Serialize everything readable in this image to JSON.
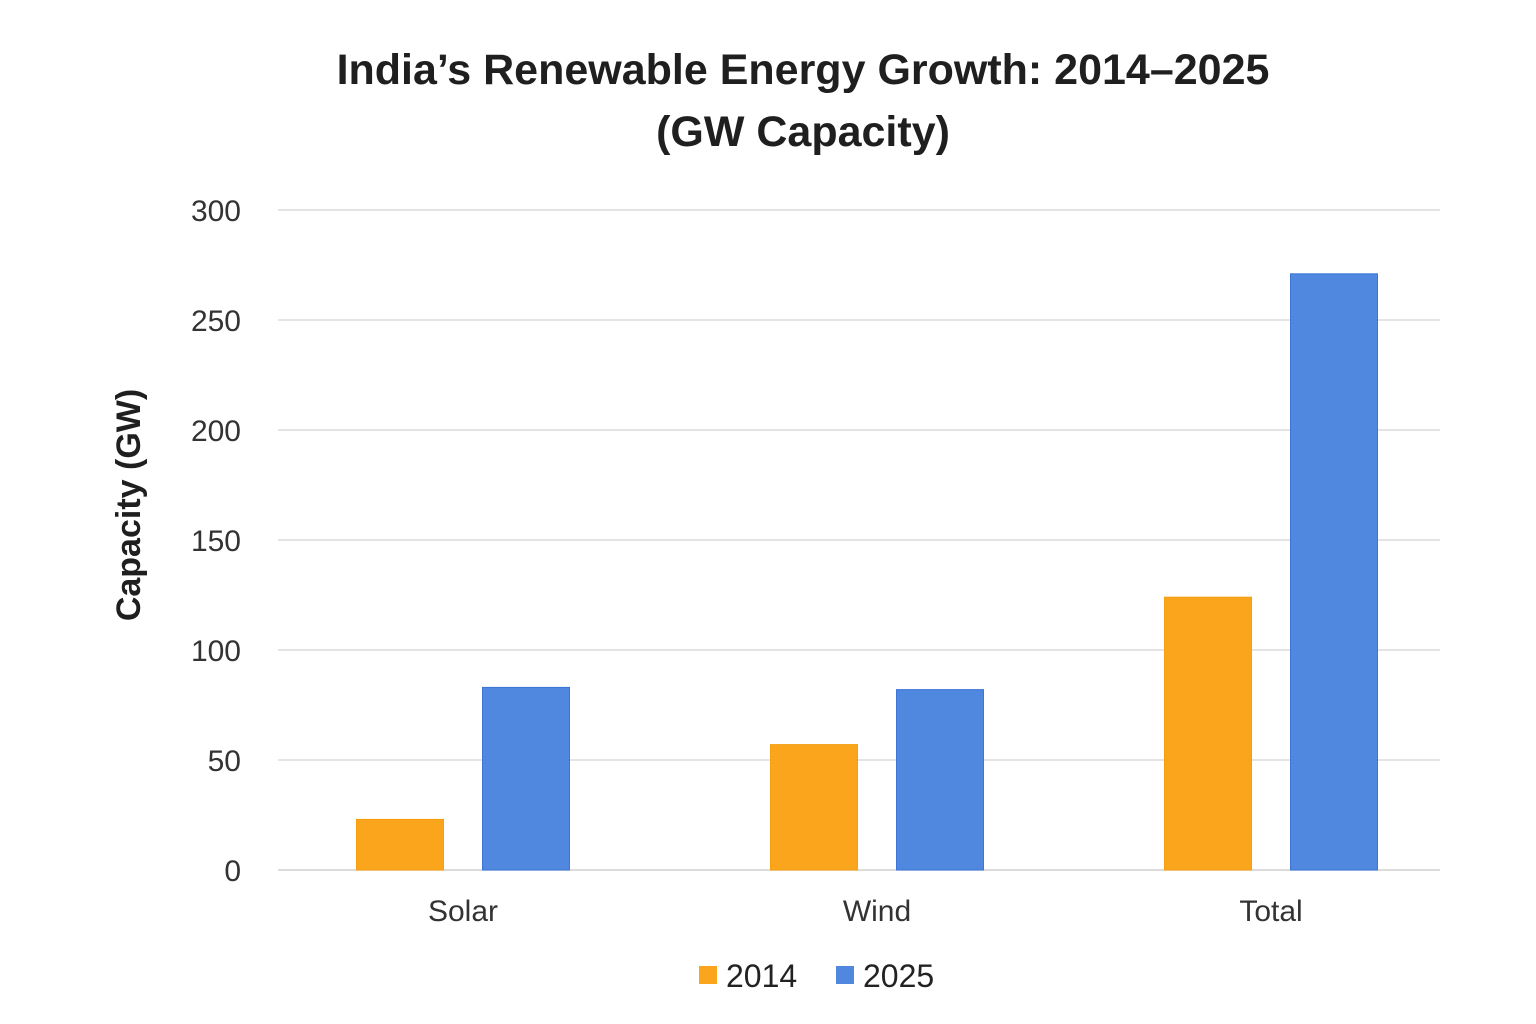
{
  "chart_data": {
    "type": "bar",
    "title": "India’s Renewable Energy Growth: 2014–2025",
    "subtitle": "(GW Capacity)",
    "xlabel": "",
    "ylabel": "Capacity (GW)",
    "ylim": [
      0,
      300
    ],
    "yticks": [
      0,
      50,
      100,
      150,
      200,
      250,
      300
    ],
    "grid": true,
    "categories": [
      "Solar",
      "Wind",
      "Total"
    ],
    "series": [
      {
        "name": "2014",
        "color": "#FBA51C",
        "values": [
          23,
          57,
          124
        ]
      },
      {
        "name": "2025",
        "color": "#5088E0",
        "values": [
          83,
          82,
          271
        ]
      }
    ],
    "legend_position": "bottom-center"
  }
}
